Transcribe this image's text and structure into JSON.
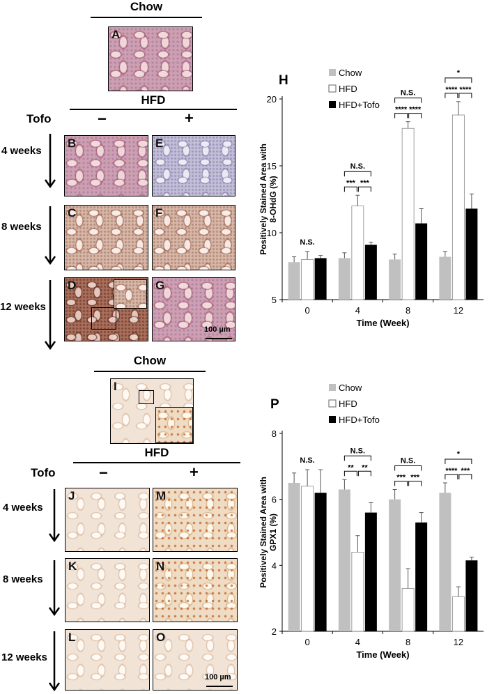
{
  "top": {
    "chow_title": "Chow",
    "hfd_title": "HFD",
    "tofo_label": "Tofo",
    "minus": "−",
    "plus": "+",
    "rows": [
      "4 weeks",
      "8 weeks",
      "12 weeks"
    ],
    "panel_letters": {
      "chow": "A",
      "minus": [
        "B",
        "C",
        "D"
      ],
      "plus": [
        "E",
        "F",
        "G"
      ]
    },
    "scale_bar": "100 µm"
  },
  "bottom": {
    "chow_title": "Chow",
    "hfd_title": "HFD",
    "tofo_label": "Tofo",
    "minus": "−",
    "plus": "+",
    "rows": [
      "4 weeks",
      "8 weeks",
      "12 weeks"
    ],
    "panel_letters": {
      "chow": "I",
      "minus": [
        "J",
        "K",
        "L"
      ],
      "plus": [
        "M",
        "N",
        "O"
      ]
    },
    "scale_bar": "100 µm"
  },
  "chart_data": [
    {
      "type": "bar",
      "panel": "H",
      "categories": [
        "0",
        "4",
        "8",
        "12"
      ],
      "xlabel": "Time (Week)",
      "ylabel": "Positively Stained Area with 8-OHdG (%)",
      "ylim": [
        5,
        20
      ],
      "yticks": [
        5,
        10,
        15,
        20
      ],
      "legend_position": "top-left",
      "series": [
        {
          "name": "Chow",
          "color": "#c0c0c0",
          "values": [
            7.8,
            8.1,
            8.0,
            8.2
          ],
          "errors": [
            0.4,
            0.4,
            0.4,
            0.4
          ]
        },
        {
          "name": "HFD",
          "color": "#ffffff",
          "values": [
            8.0,
            12.0,
            17.8,
            18.8
          ],
          "errors": [
            0.6,
            0.8,
            0.5,
            1.0
          ]
        },
        {
          "name": "HFD+Tofo",
          "color": "#000000",
          "values": [
            8.1,
            9.1,
            10.7,
            11.8
          ],
          "errors": [
            0.2,
            0.2,
            1.1,
            1.1
          ]
        }
      ],
      "annotations": {
        "0": {
          "overall": "N.S."
        },
        "4": {
          "left": "***",
          "right": "***",
          "overall": "N.S."
        },
        "8": {
          "left": "****",
          "right": "****",
          "overall": "N.S."
        },
        "12": {
          "left": "****",
          "right": "****",
          "overall": "*"
        }
      }
    },
    {
      "type": "bar",
      "panel": "P",
      "categories": [
        "0",
        "4",
        "8",
        "12"
      ],
      "xlabel": "Time (Week)",
      "ylabel": "Positively Stained Area with GPX1 (%)",
      "ylim": [
        2,
        8
      ],
      "yticks": [
        2,
        4,
        6,
        8
      ],
      "legend_position": "top-left",
      "series": [
        {
          "name": "Chow",
          "color": "#c0c0c0",
          "values": [
            6.5,
            6.3,
            6.0,
            6.2
          ],
          "errors": [
            0.3,
            0.3,
            0.3,
            0.3
          ]
        },
        {
          "name": "HFD",
          "color": "#ffffff",
          "values": [
            6.4,
            4.4,
            3.3,
            3.05
          ],
          "errors": [
            0.5,
            0.5,
            0.6,
            0.3
          ]
        },
        {
          "name": "HFD+Tofo",
          "color": "#000000",
          "values": [
            6.2,
            5.6,
            5.3,
            4.15
          ],
          "errors": [
            0.7,
            0.3,
            0.3,
            0.1
          ]
        }
      ],
      "annotations": {
        "0": {
          "overall": "N.S."
        },
        "4": {
          "left": "**",
          "right": "**",
          "overall": "N.S."
        },
        "8": {
          "left": "***",
          "right": "***",
          "overall": "N.S."
        },
        "12": {
          "left": "****",
          "right": "***",
          "overall": "*"
        }
      }
    }
  ]
}
